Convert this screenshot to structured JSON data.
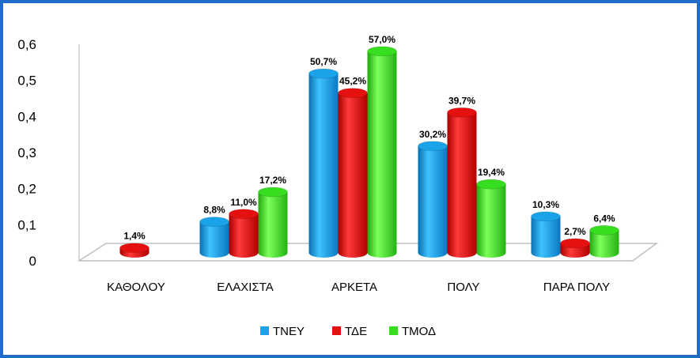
{
  "chart_data": {
    "type": "bar",
    "categories": [
      "ΚΑΘΟΛΟΥ",
      "ΕΛΑΧΙΣΤΑ",
      "ΑΡΚΕΤΑ",
      "ΠΟΛΥ",
      "ΠΑΡΑ ΠΟΛΥ"
    ],
    "series": [
      {
        "name": "ΤΝΕΥ",
        "color": "#1aa3e8",
        "values": [
          null,
          0.088,
          0.507,
          0.302,
          0.103
        ],
        "labels": [
          "",
          "8,8%",
          "50,7%",
          "30,2%",
          "10,3%"
        ]
      },
      {
        "name": "ΤΔΕ",
        "color": "#e51010",
        "values": [
          0.014,
          0.11,
          0.452,
          0.397,
          0.027
        ],
        "labels": [
          "1,4%",
          "11,0%",
          "45,2%",
          "39,7%",
          "2,7%"
        ]
      },
      {
        "name": "ΤΜΟΔ",
        "color": "#37dd1f",
        "values": [
          null,
          0.172,
          0.57,
          0.194,
          0.064
        ],
        "labels": [
          "",
          "17,2%",
          "57,0%",
          "19,4%",
          "6,4%"
        ]
      }
    ],
    "yticks": [
      "0",
      "0,1",
      "0,2",
      "0,3",
      "0,4",
      "0,5",
      "0,6"
    ],
    "ylim": [
      0,
      0.6
    ],
    "grid": false,
    "legend_position": "bottom"
  }
}
